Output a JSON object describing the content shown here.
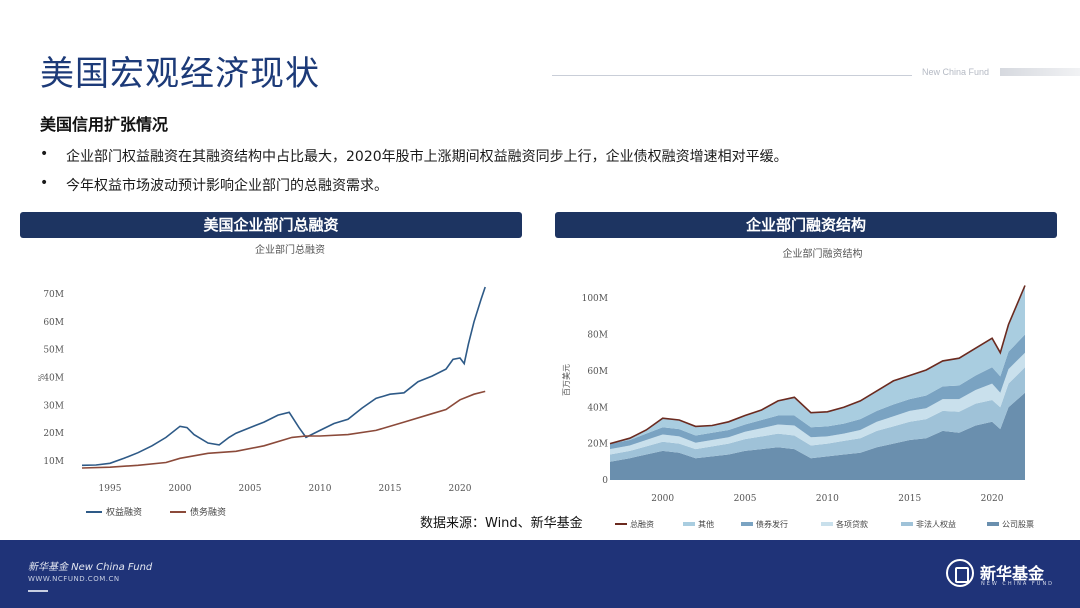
{
  "page": {
    "title": "美国宏观经济现状",
    "brand_tag": "New China Fund",
    "section_heading": "美国信用扩张情况",
    "bullets": [
      "企业部门权益融资在其融资结构中占比最大，2020年股市上涨期间权益融资同步上行，企业债权融资增速相对平缓。",
      "今年权益市场波动预计影响企业部门的总融资需求。"
    ],
    "bullet_marker": "•",
    "source": "数据来源：Wind、新华基金"
  },
  "left_panel": {
    "header": "美国企业部门总融资"
  },
  "right_panel": {
    "header": "企业部门融资结构"
  },
  "footer": {
    "brand": "新华基金 New China Fund",
    "url": "WWW.NCFUND.COM.CN",
    "logo_name": "新华基金",
    "logo_sub": "NEW CHINA FUND"
  },
  "colors": {
    "navy": "#1d3461",
    "footer": "#1f3378",
    "equity_line": "#2e5a87",
    "debt_line": "#8b4a3a"
  },
  "chart_data": [
    {
      "type": "line",
      "title": "企业部门总融资",
      "xlabel": "",
      "ylabel": "%",
      "xlim": [
        1993,
        2022
      ],
      "ylim": [
        5,
        75
      ],
      "x_ticks": [
        1995,
        2000,
        2005,
        2010,
        2015,
        2020
      ],
      "y_ticks": [
        10,
        20,
        30,
        40,
        50,
        60,
        70
      ],
      "y_tick_labels": [
        "10M",
        "20M",
        "30M",
        "40M",
        "50M",
        "60M",
        "70M"
      ],
      "grid": false,
      "legend": "bottom-left",
      "series": [
        {
          "name": "权益融资",
          "color": "#2e5a87",
          "x": [
            1993,
            1994,
            1995,
            1996,
            1997,
            1998,
            1999,
            2000,
            2000.5,
            2001,
            2002,
            2002.8,
            2003.5,
            2004,
            2005,
            2006,
            2007,
            2007.8,
            2008.5,
            2009,
            2010,
            2011,
            2012,
            2013,
            2014,
            2015,
            2016,
            2017,
            2018,
            2019,
            2019.5,
            2020,
            2020.3,
            2020.6,
            2021,
            2021.5,
            2021.8
          ],
          "values": [
            8.5,
            8.6,
            9.2,
            11,
            13,
            15.5,
            18.5,
            22.5,
            22,
            19.5,
            16.5,
            15.8,
            18.5,
            20,
            22,
            24,
            26.5,
            27.5,
            22,
            18.5,
            21,
            23.5,
            25,
            29,
            32.5,
            34,
            34.5,
            38.5,
            40.5,
            43,
            46.5,
            47,
            45,
            52,
            60,
            68,
            72.5
          ]
        },
        {
          "name": "债务融资",
          "color": "#8b4a3a",
          "x": [
            1993,
            1995,
            1997,
            1999,
            2000,
            2002,
            2004,
            2006,
            2008,
            2009,
            2010,
            2012,
            2014,
            2016,
            2018,
            2019,
            2020,
            2021,
            2021.8
          ],
          "values": [
            7.5,
            7.8,
            8.5,
            9.5,
            11,
            12.8,
            13.5,
            15.5,
            18.5,
            19,
            19,
            19.5,
            21,
            24,
            27,
            28.5,
            32,
            34,
            35
          ]
        }
      ]
    },
    {
      "type": "area",
      "title": "企业部门融资结构",
      "xlabel": "",
      "ylabel": "百万美元",
      "xlim": [
        1996.8,
        2022
      ],
      "ylim": [
        0,
        110
      ],
      "x_ticks": [
        2000,
        2005,
        2010,
        2015,
        2020
      ],
      "y_ticks": [
        0,
        20,
        40,
        60,
        80,
        100
      ],
      "y_tick_labels": [
        "0",
        "20M",
        "40M",
        "60M",
        "80M",
        "100M"
      ],
      "grid": false,
      "legend": "bottom",
      "total": {
        "name": "总融资",
        "color": "#6b2a1f"
      },
      "x": [
        1996.8,
        1998,
        1999,
        2000,
        2001,
        2002,
        2003,
        2004,
        2005,
        2006,
        2007,
        2008,
        2009,
        2010,
        2011,
        2012,
        2013,
        2014,
        2015,
        2016,
        2017,
        2018,
        2019,
        2020,
        2020.5,
        2021,
        2022
      ],
      "series": [
        {
          "name": "公司股票",
          "color": "#6a8fae",
          "values": [
            10,
            12,
            14,
            16,
            15,
            12,
            13,
            14,
            16,
            17,
            18,
            17,
            12,
            13,
            14,
            15,
            18,
            20,
            22,
            23,
            27,
            26,
            30,
            32,
            28,
            40,
            48
          ]
        },
        {
          "name": "非法人权益",
          "color": "#9fc2d8",
          "values": [
            4,
            4,
            4.5,
            5,
            5,
            5,
            5.5,
            6,
            6.5,
            7,
            7.5,
            7.5,
            7,
            7,
            7.5,
            8,
            9,
            9.5,
            10,
            10.5,
            11,
            11.5,
            12,
            12,
            12,
            13,
            14
          ]
        },
        {
          "name": "各项贷款",
          "color": "#c9e0ec",
          "values": [
            3,
            3,
            3.5,
            4,
            4,
            3.5,
            3.5,
            3.5,
            4,
            4.5,
            5,
            5.5,
            4.5,
            4,
            4,
            4.5,
            5,
            5.5,
            6,
            6,
            6.5,
            7,
            7.5,
            9,
            8,
            8,
            8
          ]
        },
        {
          "name": "债券发行",
          "color": "#7aa3c2",
          "values": [
            3,
            3,
            3.5,
            4,
            4,
            4,
            4,
            4,
            4,
            4.5,
            5,
            5.5,
            5.5,
            5.5,
            5.5,
            6,
            6,
            6.5,
            6.5,
            7,
            7,
            7.5,
            8,
            9,
            9,
            9.5,
            10
          ]
        },
        {
          "name": "其他",
          "color": "#a9cde0",
          "values": [
            0,
            1,
            2,
            5,
            5,
            5,
            4,
            4.5,
            5,
            5.5,
            8,
            10,
            8,
            8,
            9,
            10,
            11,
            13,
            13,
            14,
            14,
            15,
            15,
            16,
            13,
            15,
            27
          ]
        }
      ]
    }
  ]
}
